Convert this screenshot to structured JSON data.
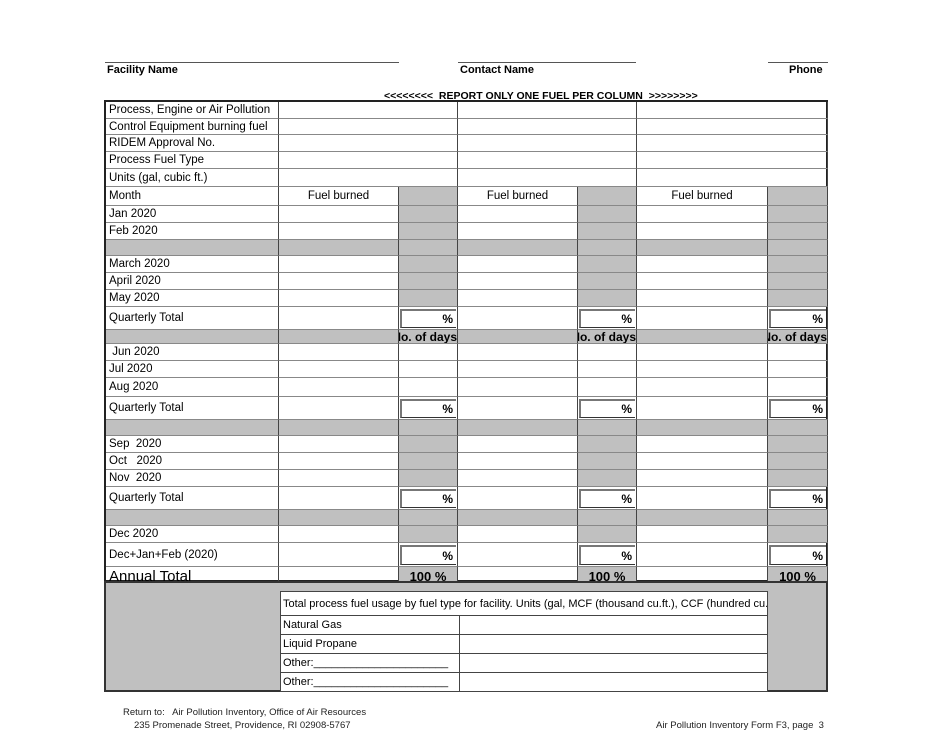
{
  "header": {
    "facility_label": "Facility Name",
    "contact_label": "Contact Name",
    "phone_label": "Phone",
    "instruction": "<<<<<<<<  REPORT ONLY ONE FUEL PER COLUMN  >>>>>>>>"
  },
  "top_rows": [
    "Process, Engine or Air Pollution",
    "Control Equipment burning fuel",
    "RIDEM Approval No.",
    "Process Fuel Type",
    "Units (gal, cubic ft.)"
  ],
  "month_header": {
    "label": "Month",
    "fuel_burned": "Fuel burned"
  },
  "rows": [
    {
      "type": "month",
      "label": "Jan 2020"
    },
    {
      "type": "month",
      "label": "Feb 2020"
    },
    {
      "type": "gap",
      "label": ""
    },
    {
      "type": "month",
      "label": "March 2020"
    },
    {
      "type": "month",
      "label": "April 2020"
    },
    {
      "type": "month",
      "label": "May 2020"
    },
    {
      "type": "total",
      "label": "Quarterly Total",
      "pct": "%"
    },
    {
      "type": "days",
      "label": "",
      "days": "No. of days"
    },
    {
      "type": "white",
      "label": " Jun 2020"
    },
    {
      "type": "white",
      "label": "Jul 2020"
    },
    {
      "type": "white",
      "label": "Aug 2020"
    },
    {
      "type": "total",
      "label": "Quarterly Total",
      "pct": "%"
    },
    {
      "type": "gap",
      "label": ""
    },
    {
      "type": "month",
      "label": "Sep  2020"
    },
    {
      "type": "month",
      "label": "Oct   2020"
    },
    {
      "type": "month",
      "label": "Nov  2020"
    },
    {
      "type": "total",
      "label": "Quarterly Total",
      "pct": "%"
    },
    {
      "type": "gap",
      "label": ""
    },
    {
      "type": "month",
      "label": "Dec 2020"
    },
    {
      "type": "total",
      "label": "Dec+Jan+Feb (2020)",
      "pct": "%"
    },
    {
      "type": "annual",
      "label": "Annual Total",
      "pct": "100 %"
    }
  ],
  "summary": {
    "title": "Total process fuel usage by fuel type for facility.  Units (gal, MCF (thousand cu.ft.), CCF (hundred cu.ft",
    "fuels": [
      "Natural Gas",
      "Liquid Propane",
      "Other:______________________",
      "Other:______________________"
    ]
  },
  "footer": {
    "return_line1": "Return to:   Air Pollution Inventory, Office of Air Resources",
    "return_line2": "235 Promenade Street, Providence, RI 02908-5767",
    "form_id": "Air Pollution Inventory Form F3, page  3"
  }
}
